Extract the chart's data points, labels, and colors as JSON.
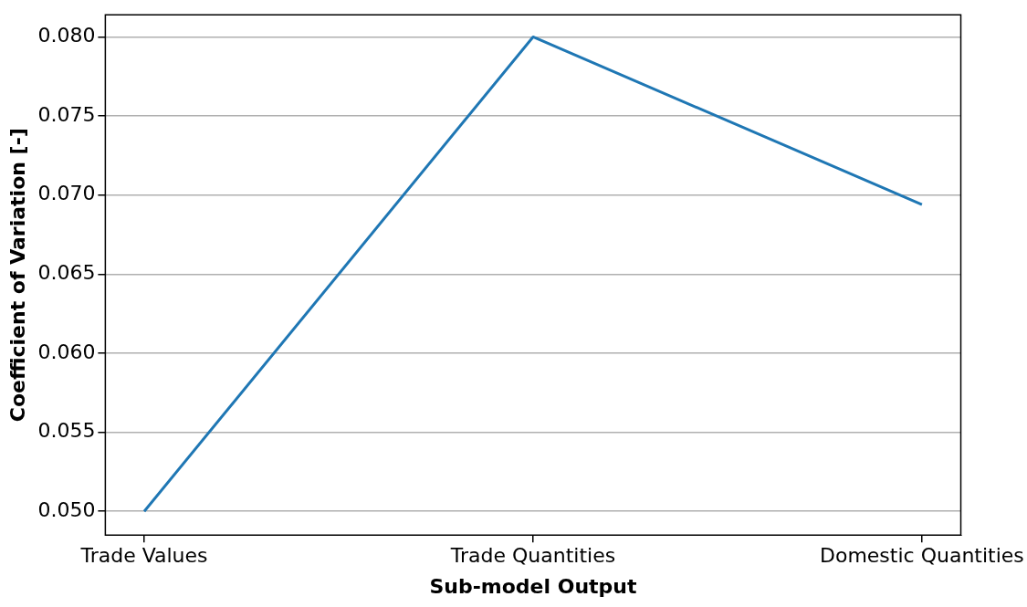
{
  "chart_data": {
    "type": "line",
    "xlabel": "Sub-model Output",
    "ylabel": "Coefficient of Variation [-]",
    "categories": [
      "Trade Values",
      "Trade Quantities",
      "Domestic Quantities"
    ],
    "series": [
      {
        "color": "#1f77b4",
        "values": [
          0.05,
          0.08,
          0.0694
        ]
      }
    ],
    "ylim": [
      0.0485,
      0.0814
    ],
    "yticks": [
      {
        "value": 0.05,
        "label": "0.050"
      },
      0.055,
      {
        "value": 0.06,
        "label": "0.060"
      },
      0.065,
      {
        "value": 0.07,
        "label": "0.070"
      },
      0.075,
      {
        "value": 0.08,
        "label": "0.080"
      }
    ],
    "grid": "y",
    "legend": false,
    "marker": "none",
    "line_style": "solid"
  }
}
